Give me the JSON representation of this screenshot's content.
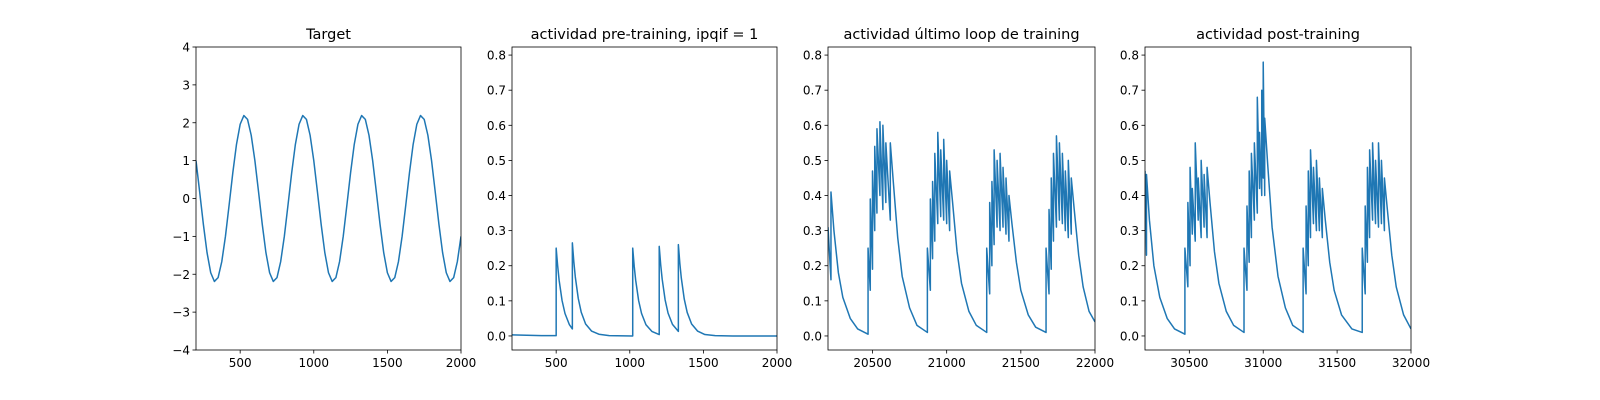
{
  "chart_data": [
    {
      "type": "line",
      "title": "Target",
      "color": "#1f77b4",
      "xlim": [
        200,
        2000
      ],
      "ylim": [
        -4,
        4
      ],
      "xticks": [
        500,
        1000,
        1500,
        2000
      ],
      "yticks": [
        {
          "value": -4,
          "label": "−4"
        },
        {
          "value": -3,
          "label": "−3"
        },
        {
          "value": -2,
          "label": "−2"
        },
        {
          "value": -1,
          "label": "−1"
        },
        0,
        1,
        2,
        3,
        4
      ],
      "x": [
        200,
        225,
        250,
        275,
        300,
        325,
        350,
        375,
        400,
        425,
        450,
        475,
        500,
        525,
        550,
        575,
        600,
        625,
        650,
        675,
        700,
        725,
        750,
        775,
        800,
        825,
        850,
        875,
        900,
        925,
        950,
        975,
        1000,
        1025,
        1050,
        1075,
        1100,
        1125,
        1150,
        1175,
        1200,
        1225,
        1250,
        1275,
        1300,
        1325,
        1350,
        1375,
        1400,
        1425,
        1450,
        1475,
        1500,
        1525,
        1550,
        1575,
        1600,
        1625,
        1650,
        1675,
        1700,
        1725,
        1750,
        1775,
        1800,
        1825,
        1850,
        1875,
        1900,
        1925,
        1950,
        1975,
        2000
      ],
      "values": [
        1.0,
        0.17,
        -0.68,
        -1.43,
        -1.96,
        -2.19,
        -2.09,
        -1.67,
        -1.0,
        -0.17,
        0.68,
        1.43,
        1.96,
        2.19,
        2.09,
        1.67,
        1.0,
        0.17,
        -0.68,
        -1.43,
        -1.96,
        -2.19,
        -2.09,
        -1.67,
        -1.0,
        -0.17,
        0.68,
        1.43,
        1.96,
        2.19,
        2.09,
        1.67,
        1.0,
        0.17,
        -0.68,
        -1.43,
        -1.96,
        -2.19,
        -2.09,
        -1.67,
        -1.0,
        -0.17,
        0.68,
        1.43,
        1.96,
        2.19,
        2.09,
        1.67,
        1.0,
        0.17,
        -0.68,
        -1.43,
        -1.96,
        -2.19,
        -2.09,
        -1.67,
        -1.0,
        -0.17,
        0.68,
        1.43,
        1.96,
        2.19,
        2.09,
        1.67,
        1.0,
        0.17,
        -0.68,
        -1.43,
        -1.96,
        -2.19,
        -2.09,
        -1.67,
        -1.0
      ]
    },
    {
      "type": "line",
      "title": "actividad pre-training, ipqif = 1",
      "color": "#1f77b4",
      "xlim": [
        200,
        2000
      ],
      "ylim": [
        -0.04,
        0.823
      ],
      "xticks": [
        500,
        1000,
        1500,
        2000
      ],
      "yticks": [
        {
          "value": 0,
          "label": "0.0"
        },
        0.1,
        0.2,
        0.3,
        0.4,
        0.5,
        0.6,
        0.7,
        0.8
      ],
      "x": [
        200,
        300,
        400,
        500,
        500,
        510,
        520,
        540,
        560,
        590,
        610,
        610,
        620,
        630,
        650,
        670,
        700,
        740,
        790,
        860,
        1020,
        1020,
        1030,
        1040,
        1060,
        1080,
        1110,
        1150,
        1200,
        1200,
        1210,
        1220,
        1240,
        1260,
        1290,
        1330,
        1330,
        1340,
        1350,
        1370,
        1390,
        1420,
        1460,
        1510,
        1580,
        1700,
        2000
      ],
      "values": [
        0.003,
        0.002,
        0.001,
        0.001,
        0.25,
        0.2,
        0.159,
        0.101,
        0.064,
        0.032,
        0.02,
        0.265,
        0.211,
        0.168,
        0.107,
        0.068,
        0.034,
        0.014,
        0.005,
        0.001,
        0.0,
        0.25,
        0.199,
        0.159,
        0.101,
        0.064,
        0.032,
        0.013,
        0.004,
        0.255,
        0.203,
        0.162,
        0.103,
        0.065,
        0.033,
        0.013,
        0.26,
        0.207,
        0.165,
        0.105,
        0.067,
        0.034,
        0.014,
        0.004,
        0.001,
        0.0,
        0.0
      ]
    },
    {
      "type": "line",
      "title": "actividad último loop de training",
      "color": "#1f77b4",
      "xlim": [
        20200,
        22000
      ],
      "ylim": [
        -0.04,
        0.823
      ],
      "xticks": [
        20500,
        21000,
        21500,
        22000
      ],
      "yticks": [
        {
          "value": 0,
          "label": "0.0"
        },
        0.1,
        0.2,
        0.3,
        0.4,
        0.5,
        0.6,
        0.7,
        0.8
      ],
      "x": [
        20200,
        20220,
        20220,
        20240,
        20270,
        20300,
        20350,
        20400,
        20470,
        20470,
        20485,
        20485,
        20500,
        20500,
        20515,
        20515,
        20530,
        20530,
        20550,
        20550,
        20570,
        20570,
        20590,
        20590,
        20620,
        20620,
        20640,
        20670,
        20700,
        20750,
        20800,
        20870,
        20870,
        20890,
        20890,
        20905,
        20905,
        20920,
        20920,
        20940,
        20940,
        20960,
        20960,
        20980,
        20980,
        21000,
        21000,
        21020,
        21020,
        21040,
        21070,
        21100,
        21150,
        21200,
        21270,
        21270,
        21290,
        21290,
        21305,
        21305,
        21320,
        21320,
        21340,
        21340,
        21360,
        21360,
        21380,
        21380,
        21400,
        21400,
        21420,
        21420,
        21440,
        21470,
        21500,
        21550,
        21600,
        21670,
        21670,
        21690,
        21690,
        21705,
        21705,
        21720,
        21720,
        21740,
        21740,
        21760,
        21760,
        21780,
        21780,
        21800,
        21800,
        21820,
        21820,
        21840,
        21840,
        21860,
        21890,
        21920,
        21960,
        22000
      ],
      "values": [
        0.31,
        0.16,
        0.41,
        0.3,
        0.18,
        0.11,
        0.05,
        0.02,
        0.005,
        0.25,
        0.13,
        0.39,
        0.19,
        0.47,
        0.3,
        0.54,
        0.35,
        0.59,
        0.4,
        0.61,
        0.36,
        0.6,
        0.38,
        0.55,
        0.33,
        0.55,
        0.44,
        0.28,
        0.17,
        0.08,
        0.03,
        0.01,
        0.25,
        0.13,
        0.39,
        0.22,
        0.44,
        0.27,
        0.52,
        0.32,
        0.58,
        0.34,
        0.53,
        0.33,
        0.56,
        0.32,
        0.5,
        0.3,
        0.47,
        0.38,
        0.24,
        0.15,
        0.07,
        0.03,
        0.01,
        0.25,
        0.12,
        0.38,
        0.2,
        0.44,
        0.26,
        0.53,
        0.31,
        0.5,
        0.3,
        0.52,
        0.31,
        0.48,
        0.29,
        0.45,
        0.27,
        0.4,
        0.32,
        0.21,
        0.13,
        0.06,
        0.025,
        0.01,
        0.25,
        0.12,
        0.36,
        0.19,
        0.45,
        0.27,
        0.52,
        0.31,
        0.57,
        0.33,
        0.55,
        0.32,
        0.52,
        0.3,
        0.47,
        0.28,
        0.5,
        0.29,
        0.45,
        0.36,
        0.23,
        0.14,
        0.07,
        0.04
      ]
    },
    {
      "type": "line",
      "title": "actividad post-training",
      "color": "#1f77b4",
      "xlim": [
        30200,
        32000
      ],
      "ylim": [
        -0.04,
        0.823
      ],
      "xticks": [
        30500,
        31000,
        31500,
        32000
      ],
      "yticks": [
        {
          "value": 0,
          "label": "0.0"
        },
        0.1,
        0.2,
        0.3,
        0.4,
        0.5,
        0.6,
        0.7,
        0.8
      ],
      "x": [
        30200,
        30210,
        30210,
        30230,
        30260,
        30300,
        30350,
        30400,
        30470,
        30470,
        30490,
        30490,
        30505,
        30505,
        30520,
        30520,
        30540,
        30540,
        30560,
        30560,
        30580,
        30580,
        30600,
        30600,
        30620,
        30620,
        30640,
        30670,
        30700,
        30750,
        30800,
        30870,
        30870,
        30890,
        30890,
        30905,
        30905,
        30920,
        30920,
        30940,
        30940,
        30960,
        30960,
        30975,
        30975,
        30990,
        30990,
        31000,
        31000,
        31010,
        31010,
        31030,
        31060,
        31100,
        31150,
        31200,
        31270,
        31270,
        31290,
        31290,
        31305,
        31305,
        31320,
        31320,
        31340,
        31340,
        31360,
        31360,
        31380,
        31380,
        31400,
        31400,
        31420,
        31450,
        31480,
        31530,
        31600,
        31670,
        31670,
        31690,
        31690,
        31705,
        31705,
        31720,
        31720,
        31740,
        31740,
        31760,
        31760,
        31780,
        31780,
        31800,
        31800,
        31820,
        31820,
        31840,
        31870,
        31900,
        31950,
        32000
      ],
      "values": [
        0.47,
        0.23,
        0.46,
        0.33,
        0.2,
        0.11,
        0.05,
        0.02,
        0.005,
        0.25,
        0.14,
        0.38,
        0.2,
        0.48,
        0.29,
        0.42,
        0.27,
        0.55,
        0.33,
        0.45,
        0.28,
        0.5,
        0.31,
        0.46,
        0.28,
        0.48,
        0.38,
        0.24,
        0.15,
        0.07,
        0.03,
        0.01,
        0.25,
        0.13,
        0.37,
        0.21,
        0.47,
        0.28,
        0.52,
        0.33,
        0.55,
        0.35,
        0.68,
        0.42,
        0.58,
        0.4,
        0.7,
        0.45,
        0.78,
        0.4,
        0.62,
        0.49,
        0.31,
        0.17,
        0.08,
        0.03,
        0.01,
        0.25,
        0.12,
        0.37,
        0.2,
        0.47,
        0.28,
        0.53,
        0.32,
        0.48,
        0.3,
        0.5,
        0.3,
        0.45,
        0.28,
        0.42,
        0.33,
        0.21,
        0.13,
        0.06,
        0.02,
        0.01,
        0.25,
        0.12,
        0.37,
        0.21,
        0.48,
        0.28,
        0.53,
        0.33,
        0.55,
        0.32,
        0.5,
        0.31,
        0.55,
        0.32,
        0.5,
        0.3,
        0.45,
        0.36,
        0.23,
        0.14,
        0.06,
        0.02
      ]
    }
  ]
}
